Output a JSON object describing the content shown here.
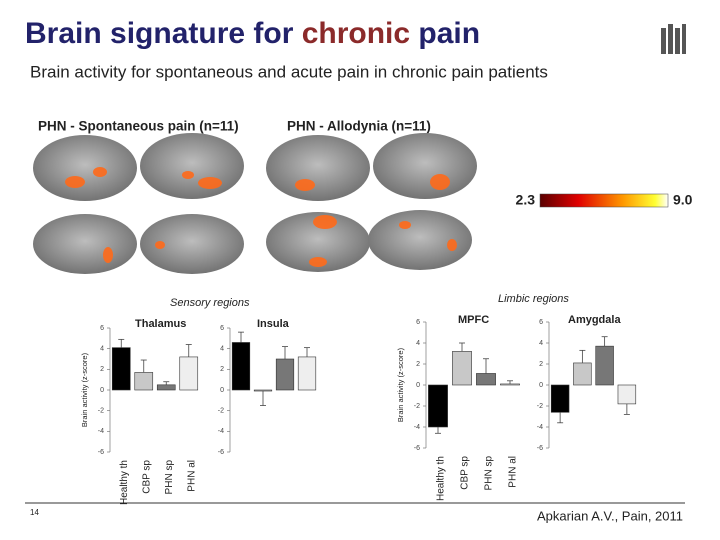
{
  "title": {
    "part1": "Brain signature for",
    "highlight": "chronic",
    "part2": "pain"
  },
  "subtitle": "Brain activity for spontaneous and acute pain in chronic pain patients",
  "panels": [
    "PHN - Spontaneous pain (n=11)",
    "PHN - Allodynia (n=11)"
  ],
  "colorbar": {
    "min": 2.3,
    "max": {
      "value": 9,
      "label": "9.0"
    }
  },
  "groups": [
    "Sensory regions",
    "Limbic regions"
  ],
  "chart_data": [
    {
      "type": "bar",
      "title": "Thalamus",
      "ylabel": "Brain activity (z-score)",
      "categories": [
        "Healthy th",
        "CBP sp",
        "PHN sp",
        "PHN al"
      ],
      "values": [
        4.1,
        1.7,
        0.5,
        3.2
      ],
      "errors": [
        0.8,
        1.2,
        0.3,
        1.2
      ],
      "colors": [
        "#000000",
        "#c8c8c8",
        "#777777",
        "#eeeeee"
      ],
      "ylim": [
        -6,
        6
      ],
      "yticks": [
        6,
        4,
        2,
        0,
        -2,
        -4,
        -6
      ]
    },
    {
      "type": "bar",
      "title": "Insula",
      "categories": [
        null,
        null,
        null,
        null
      ],
      "values": [
        4.6,
        -0.1,
        3.0,
        3.2
      ],
      "errors": [
        1.0,
        1.4,
        1.2,
        0.9
      ],
      "colors": [
        "#000000",
        "#c8c8c8",
        "#777777",
        "#eeeeee"
      ],
      "ylim": [
        -6,
        6
      ],
      "yticks": [
        6,
        4,
        2,
        0,
        -2,
        -4,
        -6
      ]
    },
    {
      "type": "bar",
      "title": "MPFC",
      "ylabel": "Brain activity (z-score)",
      "categories": [
        "Healthy th",
        "CBP sp",
        "PHN sp",
        "PHN al"
      ],
      "values": [
        -4.0,
        3.2,
        1.1,
        0.1
      ],
      "errors": [
        0.6,
        0.8,
        1.4,
        0.3
      ],
      "colors": [
        "#000000",
        "#c8c8c8",
        "#777777",
        "#eeeeee"
      ],
      "ylim": [
        -6,
        6
      ],
      "yticks": [
        6,
        4,
        2,
        0,
        -2,
        -4,
        -6
      ]
    },
    {
      "type": "bar",
      "title": "Amygdala",
      "categories": [
        null,
        null,
        null,
        null
      ],
      "values": [
        -2.6,
        2.1,
        3.7,
        -1.8
      ],
      "errors": [
        1.0,
        1.2,
        0.9,
        1.0
      ],
      "colors": [
        "#000000",
        "#c8c8c8",
        "#777777",
        "#eeeeee"
      ],
      "ylim": [
        -6,
        6
      ],
      "yticks": [
        6,
        4,
        2,
        0,
        -2,
        -4,
        -6
      ]
    }
  ],
  "page_number": 14,
  "citation": "Apkarian A.V., Pain, 2011"
}
